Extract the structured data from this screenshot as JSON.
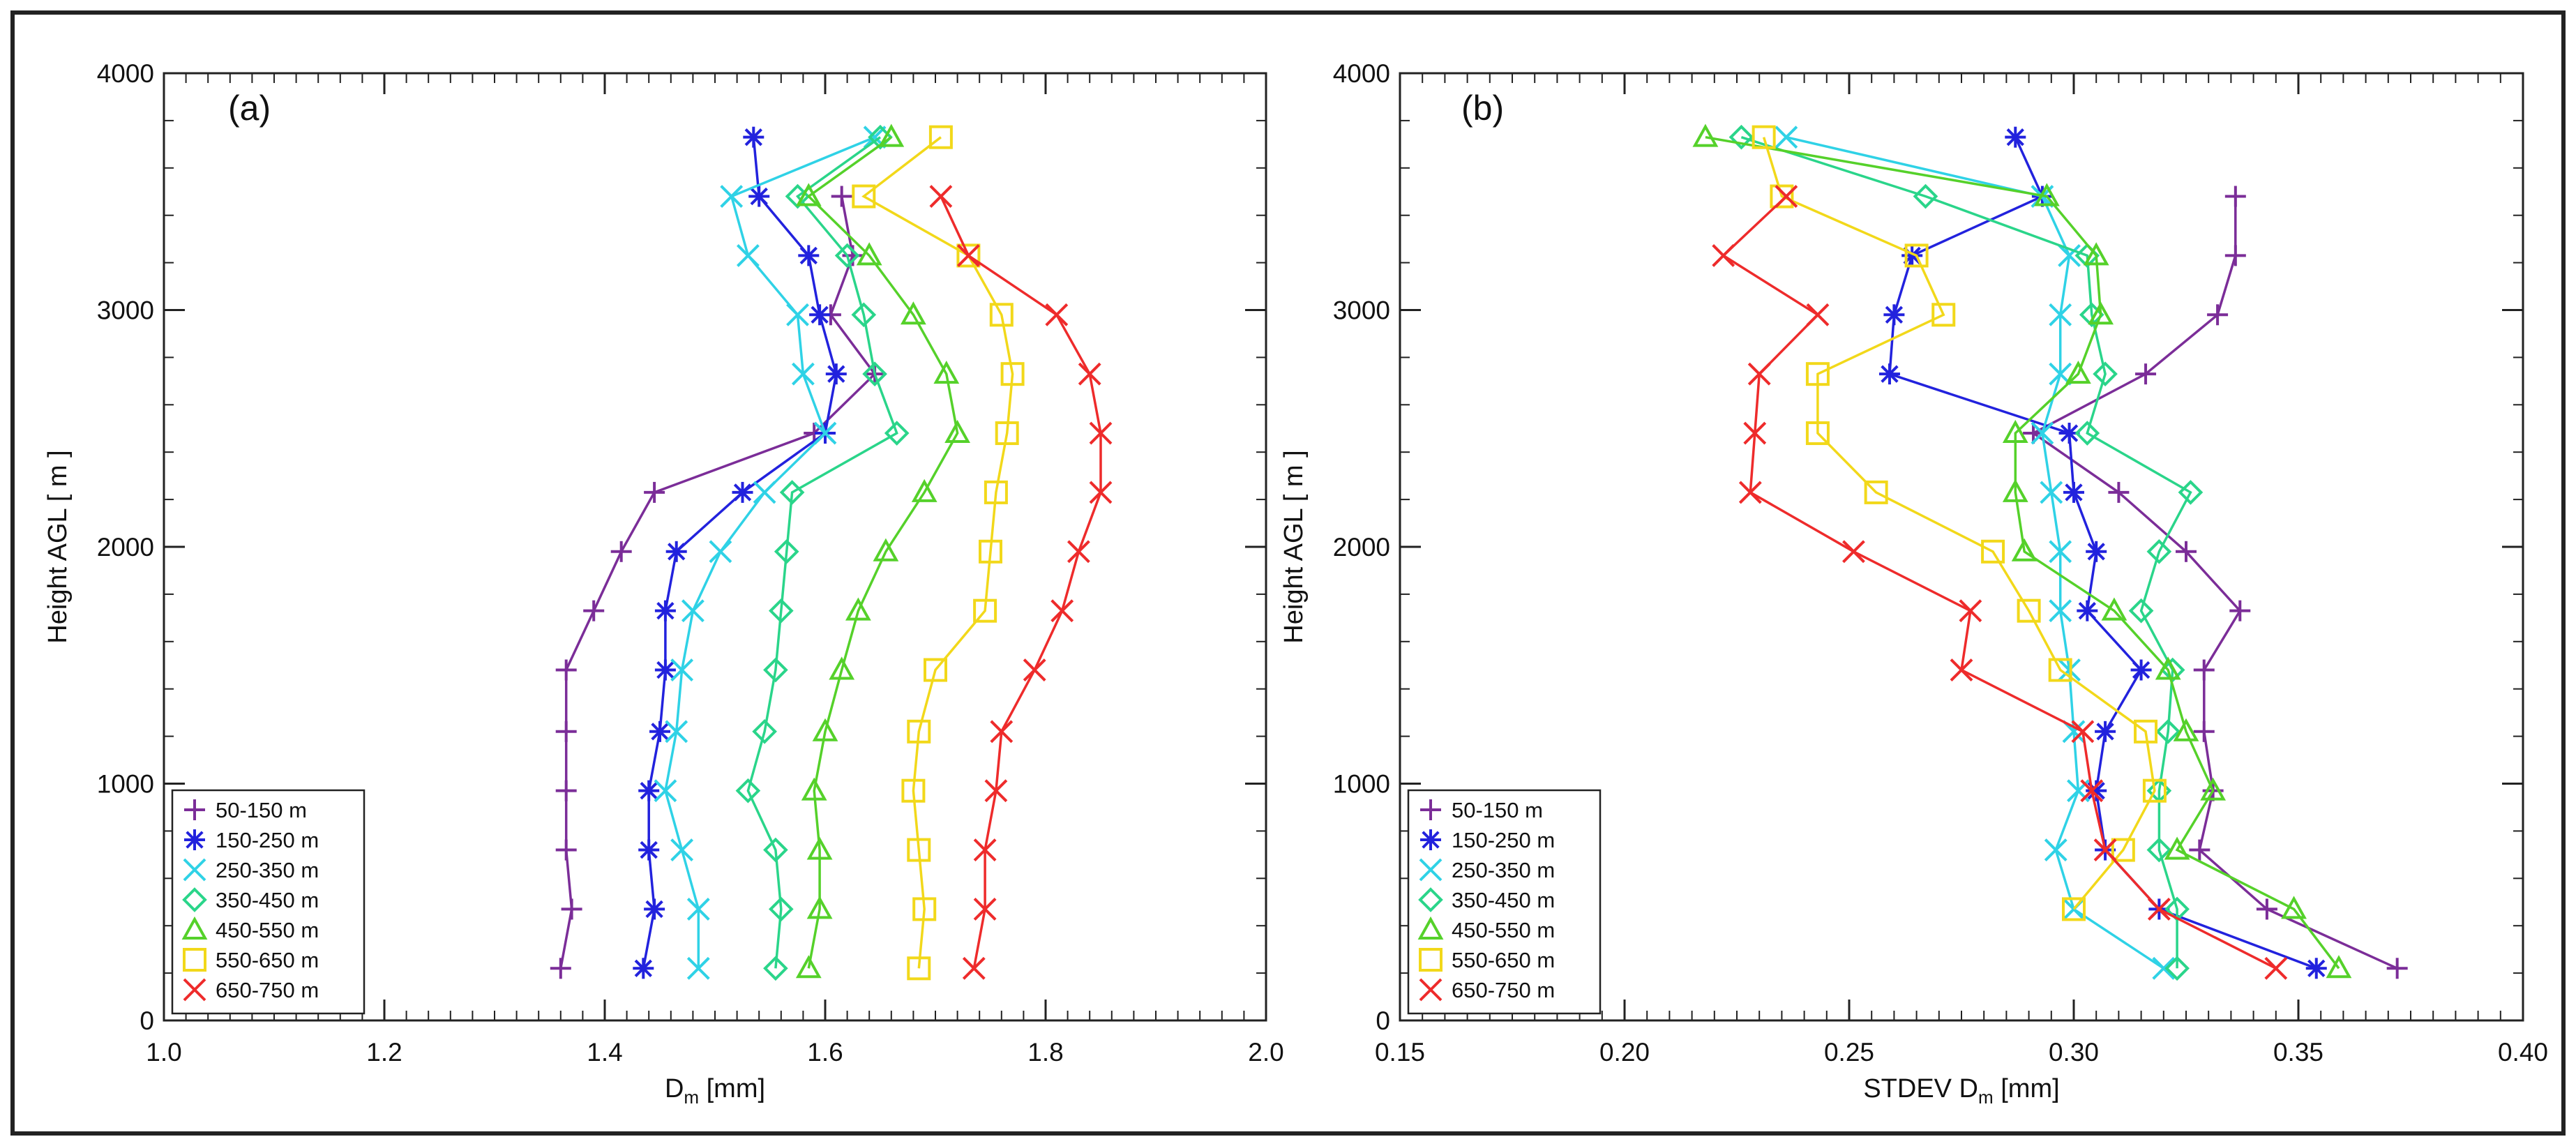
{
  "series_styles": [
    {
      "color": "#7b2d98",
      "marker": "plus"
    },
    {
      "color": "#2222dd",
      "marker": "asterisk"
    },
    {
      "color": "#2fd2e6",
      "marker": "x"
    },
    {
      "color": "#2ad58a",
      "marker": "diamond"
    },
    {
      "color": "#55d12a",
      "marker": "triangle"
    },
    {
      "color": "#f2d81a",
      "marker": "square"
    },
    {
      "color": "#ee2b2b",
      "marker": "x"
    }
  ],
  "chart_data": [
    {
      "type": "line",
      "panel_label": "(a)",
      "xlabel": "D",
      "xlabel_sub": "m",
      "xlabel_unit": " [mm]",
      "ylabel": "Height AGL [ m ]",
      "xlim": [
        1.0,
        2.0
      ],
      "ylim": [
        0,
        4000
      ],
      "xticks": [
        "1.0",
        "1.2",
        "1.4",
        "1.6",
        "1.8",
        "2.0"
      ],
      "yticks": [
        "0",
        "1000",
        "2000",
        "3000",
        "4000"
      ],
      "legend_position": "bottom-left",
      "series": [
        {
          "name": "50-150 m",
          "points": [
            [
              1.36,
              220
            ],
            [
              1.37,
              470
            ],
            [
              1.365,
              720
            ],
            [
              1.365,
              970
            ],
            [
              1.365,
              1220
            ],
            [
              1.365,
              1480
            ],
            [
              1.39,
              1730
            ],
            [
              1.415,
              1980
            ],
            [
              1.445,
              2230
            ],
            [
              1.59,
              2480
            ],
            [
              1.645,
              2730
            ],
            [
              1.605,
              2980
            ],
            [
              1.625,
              3230
            ],
            [
              1.615,
              3480
            ]
          ]
        },
        {
          "name": "150-250 m",
          "points": [
            [
              1.435,
              220
            ],
            [
              1.445,
              470
            ],
            [
              1.44,
              720
            ],
            [
              1.44,
              970
            ],
            [
              1.45,
              1220
            ],
            [
              1.455,
              1480
            ],
            [
              1.455,
              1730
            ],
            [
              1.465,
              1980
            ],
            [
              1.525,
              2230
            ],
            [
              1.6,
              2480
            ],
            [
              1.61,
              2730
            ],
            [
              1.595,
              2980
            ],
            [
              1.585,
              3230
            ],
            [
              1.54,
              3480
            ],
            [
              1.535,
              3730
            ]
          ]
        },
        {
          "name": "250-350 m",
          "points": [
            [
              1.485,
              220
            ],
            [
              1.485,
              470
            ],
            [
              1.47,
              720
            ],
            [
              1.455,
              970
            ],
            [
              1.465,
              1220
            ],
            [
              1.47,
              1480
            ],
            [
              1.48,
              1730
            ],
            [
              1.505,
              1980
            ],
            [
              1.545,
              2230
            ],
            [
              1.6,
              2480
            ],
            [
              1.58,
              2730
            ],
            [
              1.575,
              2980
            ],
            [
              1.53,
              3230
            ],
            [
              1.515,
              3480
            ],
            [
              1.645,
              3730
            ]
          ]
        },
        {
          "name": "350-450 m",
          "points": [
            [
              1.555,
              220
            ],
            [
              1.56,
              470
            ],
            [
              1.555,
              720
            ],
            [
              1.53,
              970
            ],
            [
              1.545,
              1220
            ],
            [
              1.555,
              1480
            ],
            [
              1.56,
              1730
            ],
            [
              1.565,
              1980
            ],
            [
              1.57,
              2230
            ],
            [
              1.665,
              2480
            ],
            [
              1.645,
              2730
            ],
            [
              1.635,
              2980
            ],
            [
              1.62,
              3230
            ],
            [
              1.575,
              3480
            ],
            [
              1.65,
              3730
            ]
          ]
        },
        {
          "name": "450-550 m",
          "points": [
            [
              1.585,
              220
            ],
            [
              1.595,
              470
            ],
            [
              1.595,
              720
            ],
            [
              1.59,
              970
            ],
            [
              1.6,
              1220
            ],
            [
              1.615,
              1480
            ],
            [
              1.63,
              1730
            ],
            [
              1.655,
              1980
            ],
            [
              1.69,
              2230
            ],
            [
              1.72,
              2480
            ],
            [
              1.71,
              2730
            ],
            [
              1.68,
              2980
            ],
            [
              1.64,
              3230
            ],
            [
              1.585,
              3480
            ],
            [
              1.66,
              3730
            ]
          ]
        },
        {
          "name": "550-650 m",
          "points": [
            [
              1.685,
              220
            ],
            [
              1.69,
              470
            ],
            [
              1.685,
              720
            ],
            [
              1.68,
              970
            ],
            [
              1.685,
              1220
            ],
            [
              1.7,
              1480
            ],
            [
              1.745,
              1730
            ],
            [
              1.75,
              1980
            ],
            [
              1.755,
              2230
            ],
            [
              1.765,
              2480
            ],
            [
              1.77,
              2730
            ],
            [
              1.76,
              2980
            ],
            [
              1.73,
              3230
            ],
            [
              1.635,
              3480
            ],
            [
              1.705,
              3730
            ]
          ]
        },
        {
          "name": "650-750 m",
          "points": [
            [
              1.735,
              220
            ],
            [
              1.745,
              470
            ],
            [
              1.745,
              720
            ],
            [
              1.755,
              970
            ],
            [
              1.76,
              1220
            ],
            [
              1.79,
              1480
            ],
            [
              1.815,
              1730
            ],
            [
              1.83,
              1980
            ],
            [
              1.85,
              2230
            ],
            [
              1.85,
              2480
            ],
            [
              1.84,
              2730
            ],
            [
              1.81,
              2980
            ],
            [
              1.73,
              3230
            ],
            [
              1.705,
              3480
            ]
          ]
        }
      ]
    },
    {
      "type": "line",
      "panel_label": "(b)",
      "xlabel": "STDEV D",
      "xlabel_sub": "m",
      "xlabel_unit": " [mm]",
      "ylabel": "Height AGL [ m ]",
      "xlim": [
        0.15,
        0.4
      ],
      "ylim": [
        0,
        4000
      ],
      "xticks": [
        "0.15",
        "0.20",
        "0.25",
        "0.30",
        "0.35",
        "0.40"
      ],
      "yticks": [
        "0",
        "1000",
        "2000",
        "3000",
        "4000"
      ],
      "legend_position": "bottom-left",
      "series": [
        {
          "name": "50-150 m",
          "points": [
            [
              0.372,
              220
            ],
            [
              0.343,
              470
            ],
            [
              0.328,
              720
            ],
            [
              0.331,
              970
            ],
            [
              0.329,
              1220
            ],
            [
              0.329,
              1480
            ],
            [
              0.337,
              1730
            ],
            [
              0.325,
              1980
            ],
            [
              0.31,
              2230
            ],
            [
              0.291,
              2480
            ],
            [
              0.316,
              2730
            ],
            [
              0.332,
              2980
            ],
            [
              0.336,
              3230
            ],
            [
              0.336,
              3480
            ]
          ]
        },
        {
          "name": "150-250 m",
          "points": [
            [
              0.354,
              220
            ],
            [
              0.319,
              470
            ],
            [
              0.307,
              720
            ],
            [
              0.305,
              970
            ],
            [
              0.307,
              1220
            ],
            [
              0.315,
              1480
            ],
            [
              0.303,
              1730
            ],
            [
              0.305,
              1980
            ],
            [
              0.3,
              2230
            ],
            [
              0.299,
              2480
            ],
            [
              0.259,
              2730
            ],
            [
              0.26,
              2980
            ],
            [
              0.264,
              3230
            ],
            [
              0.293,
              3480
            ],
            [
              0.287,
              3730
            ]
          ]
        },
        {
          "name": "250-350 m",
          "points": [
            [
              0.32,
              220
            ],
            [
              0.3,
              470
            ],
            [
              0.296,
              720
            ],
            [
              0.301,
              970
            ],
            [
              0.3,
              1220
            ],
            [
              0.299,
              1480
            ],
            [
              0.297,
              1730
            ],
            [
              0.297,
              1980
            ],
            [
              0.295,
              2230
            ],
            [
              0.293,
              2480
            ],
            [
              0.297,
              2730
            ],
            [
              0.297,
              2980
            ],
            [
              0.299,
              3230
            ],
            [
              0.293,
              3480
            ],
            [
              0.236,
              3730
            ]
          ]
        },
        {
          "name": "350-450 m",
          "points": [
            [
              0.323,
              220
            ],
            [
              0.323,
              470
            ],
            [
              0.319,
              720
            ],
            [
              0.319,
              970
            ],
            [
              0.321,
              1220
            ],
            [
              0.322,
              1480
            ],
            [
              0.315,
              1730
            ],
            [
              0.319,
              1980
            ],
            [
              0.326,
              2230
            ],
            [
              0.303,
              2480
            ],
            [
              0.307,
              2730
            ],
            [
              0.304,
              2980
            ],
            [
              0.303,
              3230
            ],
            [
              0.267,
              3480
            ],
            [
              0.226,
              3730
            ]
          ]
        },
        {
          "name": "450-550 m",
          "points": [
            [
              0.359,
              220
            ],
            [
              0.349,
              470
            ],
            [
              0.323,
              720
            ],
            [
              0.331,
              970
            ],
            [
              0.325,
              1220
            ],
            [
              0.321,
              1480
            ],
            [
              0.309,
              1730
            ],
            [
              0.289,
              1980
            ],
            [
              0.287,
              2230
            ],
            [
              0.287,
              2480
            ],
            [
              0.301,
              2730
            ],
            [
              0.306,
              2980
            ],
            [
              0.305,
              3230
            ],
            [
              0.294,
              3480
            ],
            [
              0.218,
              3730
            ]
          ]
        },
        {
          "name": "550-650 m",
          "points": [
            [
              0.3,
              470
            ],
            [
              0.311,
              720
            ],
            [
              0.318,
              970
            ],
            [
              0.316,
              1220
            ],
            [
              0.297,
              1480
            ],
            [
              0.29,
              1730
            ],
            [
              0.282,
              1980
            ],
            [
              0.256,
              2230
            ],
            [
              0.243,
              2480
            ],
            [
              0.243,
              2730
            ],
            [
              0.271,
              2980
            ],
            [
              0.265,
              3230
            ],
            [
              0.235,
              3480
            ],
            [
              0.231,
              3730
            ]
          ]
        },
        {
          "name": "650-750 m",
          "points": [
            [
              0.345,
              220
            ],
            [
              0.319,
              470
            ],
            [
              0.307,
              720
            ],
            [
              0.304,
              970
            ],
            [
              0.302,
              1220
            ],
            [
              0.275,
              1480
            ],
            [
              0.277,
              1730
            ],
            [
              0.251,
              1980
            ],
            [
              0.228,
              2230
            ],
            [
              0.229,
              2480
            ],
            [
              0.23,
              2730
            ],
            [
              0.243,
              2980
            ],
            [
              0.222,
              3230
            ],
            [
              0.236,
              3480
            ]
          ]
        }
      ]
    }
  ]
}
